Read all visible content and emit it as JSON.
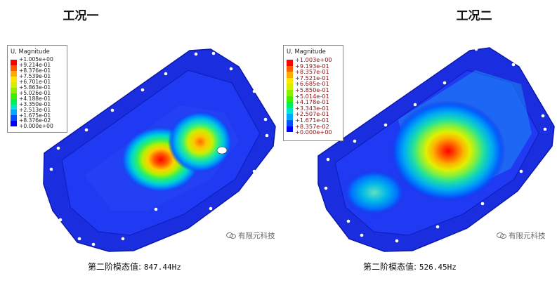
{
  "left": {
    "title": "工况一",
    "legend_title": "U, Magnitude",
    "legend_values": [
      "+1.005e+00",
      "+9.214e-01",
      "+8.376e-01",
      "+7.539e-01",
      "+6.701e-01",
      "+5.863e-01",
      "+5.026e-01",
      "+4.188e-01",
      "+3.350e-01",
      "+2.513e-01",
      "+1.675e-01",
      "+8.376e-02",
      "+0.000e+00"
    ],
    "caption_label": "第二阶模态值:",
    "caption_value": "847.44Hz",
    "watermark": "有限元科技"
  },
  "right": {
    "title": "工况二",
    "legend_title": "U, Magnitude",
    "legend_values": [
      "+1.003e+00",
      "+9.193e-01",
      "+8.357e-01",
      "+7.521e-01",
      "+6.685e-01",
      "+5.850e-01",
      "+5.014e-01",
      "+4.178e-01",
      "+3.343e-01",
      "+2.507e-01",
      "+1.671e-01",
      "+8.357e-02",
      "+0.000e+00"
    ],
    "caption_label": "第二阶模态值:",
    "caption_value": "526.45Hz",
    "watermark": "有限元科技"
  },
  "colors": {
    "legend_scale": [
      "#ff0000",
      "#ff5a00",
      "#ffad00",
      "#ffe600",
      "#d4f000",
      "#8af000",
      "#3ef000",
      "#00f05a",
      "#00e6c8",
      "#00a8ff",
      "#0050ff",
      "#0000ff"
    ],
    "body_blue": "#1a2ee0"
  }
}
